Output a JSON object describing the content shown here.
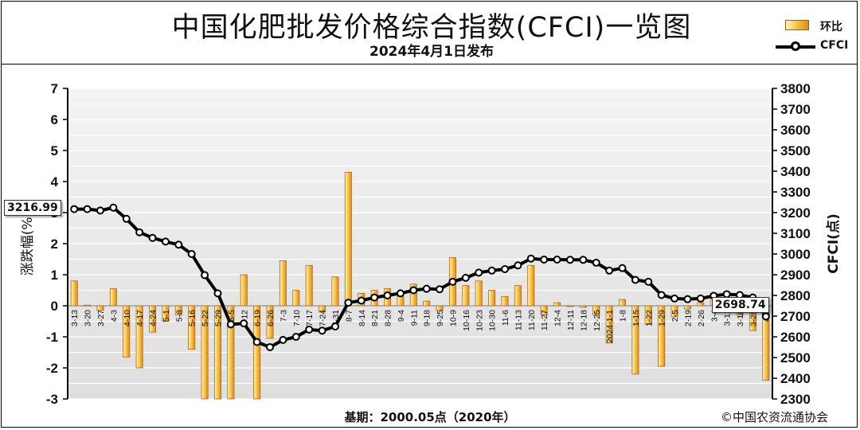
{
  "header": {
    "title": "中国化肥批发价格综合指数(CFCI)一览图",
    "subtitle": "2024年4月1日发布"
  },
  "legend": {
    "bar_label": "环比",
    "line_label": "CFCI"
  },
  "footer": {
    "base_note": "基期：2000.05点（2020年）",
    "copyright": "©中国农资流通协会"
  },
  "callouts": {
    "start_value": "3216.99",
    "end_value": "2698.74"
  },
  "colors": {
    "bar_light": "#fff6c2",
    "bar_mid": "#f7c94b",
    "bar_dark": "#e48a1b",
    "line": "#000000",
    "plot_bg": "#e6e6e6"
  },
  "chart_data": {
    "type": "bar",
    "categories": [
      "3-13",
      "3-20",
      "3-27",
      "4-3",
      "4-10",
      "4-17",
      "4-24",
      "5-1",
      "5-8",
      "5-16",
      "5-22",
      "5-29",
      "6-5",
      "6-12",
      "6-19",
      "6-26",
      "7-3",
      "7-10",
      "7-17",
      "7-24",
      "7-31",
      "8-7",
      "8-14",
      "8-21",
      "8-28",
      "9-4",
      "9-11",
      "9-18",
      "9-25",
      "10-9",
      "10-16",
      "10-23",
      "10-30",
      "11-6",
      "11-13",
      "11-20",
      "11-27",
      "12-4",
      "12-11",
      "12-18",
      "12-25",
      "2024-1-1",
      "1-8",
      "1-15",
      "1-22",
      "1-29",
      "2-5",
      "2-19",
      "2-26",
      "3-4",
      "3-11",
      "3-18",
      "3-25",
      "4-1"
    ],
    "series": [
      {
        "name": "环比",
        "axis": "left",
        "values": [
          0.8,
          0.02,
          -0.15,
          0.55,
          -1.65,
          -2.0,
          -0.85,
          -0.5,
          -0.3,
          -1.4,
          -3.0,
          -3.0,
          -3.0,
          1.0,
          -3.0,
          -1.05,
          1.45,
          0.5,
          1.3,
          -0.2,
          0.93,
          4.3,
          0.4,
          0.5,
          0.55,
          0.3,
          0.7,
          0.15,
          -0.15,
          1.55,
          0.65,
          0.8,
          0.5,
          0.3,
          0.65,
          1.3,
          -0.3,
          0.1,
          0.0,
          -0.05,
          -0.3,
          -1.2,
          0.2,
          -2.2,
          -0.6,
          -1.95,
          -0.35,
          -0.1,
          0.1,
          0.4,
          0.1,
          -0.3,
          -0.8,
          -2.4
        ]
      },
      {
        "name": "CFCI",
        "axis": "right",
        "values": [
          3216.99,
          3217,
          3210,
          3224,
          3170,
          3105,
          3078,
          3060,
          3045,
          3000,
          2898,
          2810,
          2660,
          2665,
          2575,
          2550,
          2585,
          2600,
          2635,
          2630,
          2650,
          2765,
          2775,
          2790,
          2800,
          2810,
          2825,
          2832,
          2830,
          2866,
          2885,
          2910,
          2920,
          2927,
          2945,
          2978,
          2973,
          2973,
          2972,
          2972,
          2958,
          2920,
          2932,
          2875,
          2866,
          2802,
          2785,
          2782,
          2785,
          2798,
          2806,
          2802,
          2790,
          2698.74
        ]
      }
    ],
    "left_axis": {
      "label": "涨跌幅(%)",
      "range": [
        -3,
        7
      ],
      "ticks": [
        "-3",
        "-2",
        "-1",
        "0",
        "1",
        "2",
        "3",
        "4",
        "5",
        "6",
        "7"
      ]
    },
    "right_axis": {
      "label": "CFCI(点)",
      "range": [
        2300,
        3800
      ],
      "ticks": [
        "2300",
        "2400",
        "2500",
        "2600",
        "2700",
        "2800",
        "2900",
        "3000",
        "3100",
        "3200",
        "3300",
        "3400",
        "3500",
        "3600",
        "3700",
        "3800"
      ]
    },
    "grid": true,
    "legend_position": "top-right"
  }
}
